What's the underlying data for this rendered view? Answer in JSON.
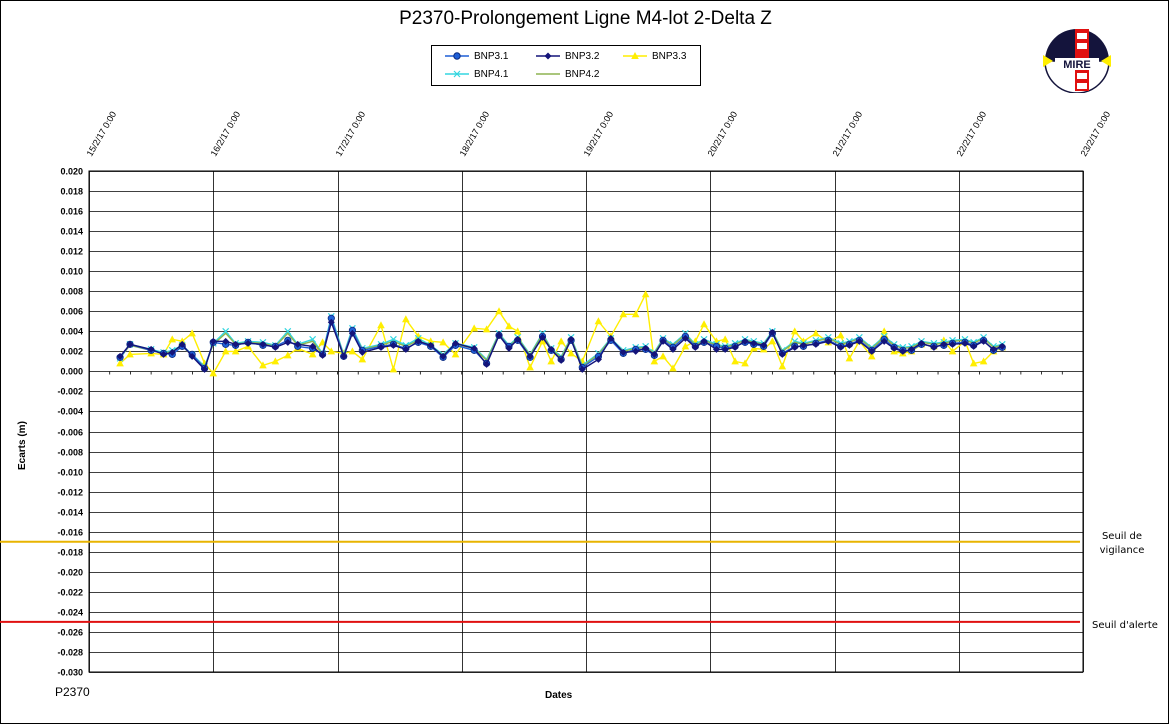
{
  "chart_data": {
    "type": "line",
    "title": "P2370-Prolongement  Ligne  M4-lot  2-Delta  Z",
    "xlabel": "Dates",
    "ylabel": "Ecarts (m)",
    "footer_label": "P2370",
    "ylim": [
      -0.03,
      0.02
    ],
    "y_tick_step": 0.002,
    "y_ticks": [
      "0.020",
      "0.018",
      "0.016",
      "0.014",
      "0.012",
      "0.010",
      "0.008",
      "0.006",
      "0.004",
      "0.002",
      "0.000",
      "-0.002",
      "-0.004",
      "-0.006",
      "-0.008",
      "-0.010",
      "-0.012",
      "-0.014",
      "-0.016",
      "-0.018",
      "-0.020",
      "-0.022",
      "-0.024",
      "-0.026",
      "-0.028",
      "-0.030"
    ],
    "x_range_days": [
      15,
      23
    ],
    "x_ticks": [
      {
        "day": 15,
        "label": "15/2/17 0:00"
      },
      {
        "day": 16,
        "label": "16/2/17 0:00"
      },
      {
        "day": 17,
        "label": "17/2/17 0:00"
      },
      {
        "day": 18,
        "label": "18/2/17 0:00"
      },
      {
        "day": 19,
        "label": "19/2/17 0:00"
      },
      {
        "day": 20,
        "label": "20/2/17 0:00"
      },
      {
        "day": 21,
        "label": "21/2/17 0:00"
      },
      {
        "day": 22,
        "label": "22/2/17 0:00"
      },
      {
        "day": 23,
        "label": "23/2/17 0:00"
      }
    ],
    "grid": "on",
    "legend_position": "top-center",
    "thresholds": [
      {
        "name": "Seuil de vigilance",
        "label_lines": [
          "Seuil de",
          "vigilance"
        ],
        "value": -0.017,
        "color": "#e8b400"
      },
      {
        "name": "Seuil d'alerte",
        "label_lines": [
          "Seuil d'alerte"
        ],
        "value": -0.025,
        "color": "#e01010"
      }
    ],
    "x_dates_day": [
      15.25,
      15.33,
      15.5,
      15.6,
      15.67,
      15.75,
      15.83,
      15.93,
      16.0,
      16.1,
      16.18,
      16.28,
      16.4,
      16.5,
      16.6,
      16.68,
      16.8,
      16.88,
      16.95,
      17.05,
      17.12,
      17.2,
      17.35,
      17.45,
      17.55,
      17.65,
      17.75,
      17.85,
      17.95,
      18.1,
      18.2,
      18.3,
      18.38,
      18.45,
      18.55,
      18.65,
      18.72,
      18.8,
      18.88,
      18.97,
      19.1,
      19.2,
      19.3,
      19.4,
      19.48,
      19.55,
      19.62,
      19.7,
      19.8,
      19.88,
      19.95,
      20.05,
      20.12,
      20.2,
      20.28,
      20.35,
      20.43,
      20.5,
      20.58,
      20.68,
      20.75,
      20.85,
      20.95,
      21.05,
      21.12,
      21.2,
      21.3,
      21.4,
      21.48,
      21.55,
      21.62,
      21.7,
      21.8,
      21.88,
      21.95,
      22.05,
      22.12,
      22.2,
      22.28,
      22.35
    ],
    "series": [
      {
        "name": "BNP3.1",
        "color": "#1f5fd6",
        "marker": "circle",
        "values": [
          0.0014,
          0.0027,
          0.0021,
          0.0018,
          0.0017,
          0.0025,
          0.0017,
          0.0003,
          0.0029,
          0.0027,
          0.0026,
          0.0029,
          0.0026,
          0.0025,
          0.0031,
          0.0025,
          0.0023,
          0.0017,
          0.0053,
          0.0015,
          0.0041,
          0.0021,
          0.0025,
          0.0027,
          0.0023,
          0.0029,
          0.0025,
          0.0014,
          0.0026,
          0.0021,
          0.0008,
          0.0036,
          0.0025,
          0.0031,
          0.0014,
          0.0035,
          0.0021,
          0.0012,
          0.0031,
          0.0004,
          0.0015,
          0.0031,
          0.0018,
          0.0022,
          0.0022,
          0.0016,
          0.0031,
          0.0024,
          0.0035,
          0.0025,
          0.0029,
          0.0025,
          0.0023,
          0.0025,
          0.0029,
          0.0027,
          0.0025,
          0.0038,
          0.0018,
          0.0025,
          0.0025,
          0.0028,
          0.0031,
          0.0025,
          0.0027,
          0.0031,
          0.0021,
          0.0032,
          0.0024,
          0.0021,
          0.0021,
          0.0027,
          0.0025,
          0.0026,
          0.0028,
          0.0029,
          0.0026,
          0.0031,
          0.0021,
          0.0024
        ]
      },
      {
        "name": "BNP3.2",
        "color": "#14147a",
        "marker": "diamond",
        "values": [
          0.0015,
          0.0027,
          0.0022,
          0.0017,
          0.0019,
          0.0027,
          0.0015,
          0.0002,
          0.003,
          0.003,
          0.0027,
          0.0028,
          0.0027,
          0.0024,
          0.0029,
          0.0027,
          0.0025,
          0.0016,
          0.0049,
          0.0015,
          0.0038,
          0.0019,
          0.0024,
          0.0026,
          0.0022,
          0.003,
          0.0026,
          0.0015,
          0.0028,
          0.0023,
          0.0007,
          0.0036,
          0.0023,
          0.0032,
          0.0015,
          0.0034,
          0.0022,
          0.0011,
          0.0032,
          0.0002,
          0.0012,
          0.0033,
          0.0019,
          0.002,
          0.0023,
          0.0017,
          0.003,
          0.0022,
          0.0033,
          0.0024,
          0.003,
          0.0022,
          0.0022,
          0.0024,
          0.003,
          0.0028,
          0.0026,
          0.0039,
          0.0017,
          0.0024,
          0.0026,
          0.0027,
          0.003,
          0.0024,
          0.0026,
          0.003,
          0.002,
          0.003,
          0.0023,
          0.002,
          0.0022,
          0.0028,
          0.0024,
          0.0027,
          0.0027,
          0.0028,
          0.0025,
          0.003,
          0.0022,
          0.0025
        ]
      },
      {
        "name": "BNP3.3",
        "color": "#ffee00",
        "marker": "triangle",
        "values": [
          0.0008,
          0.0017,
          0.0018,
          0.0017,
          0.0032,
          0.003,
          0.0038,
          0.0008,
          -0.0002,
          0.002,
          0.002,
          0.0025,
          0.0006,
          0.001,
          0.0016,
          0.0023,
          0.0017,
          0.0029,
          0.002,
          0.0018,
          0.002,
          0.0012,
          0.0046,
          0.0002,
          0.0052,
          0.0035,
          0.003,
          0.0029,
          0.0017,
          0.0043,
          0.0042,
          0.006,
          0.0045,
          0.004,
          0.0004,
          0.003,
          0.001,
          0.003,
          0.0018,
          0.001,
          0.005,
          0.0035,
          0.0057,
          0.0057,
          0.0077,
          0.001,
          0.0015,
          0.0003,
          0.0025,
          0.003,
          0.0047,
          0.003,
          0.0032,
          0.001,
          0.0008,
          0.0023,
          0.0022,
          0.003,
          0.0005,
          0.004,
          0.003,
          0.0038,
          0.0029,
          0.0036,
          0.0013,
          0.003,
          0.0015,
          0.004,
          0.002,
          0.0018,
          0.002,
          0.0027,
          0.0025,
          0.0031,
          0.002,
          0.003,
          0.0008,
          0.001,
          0.002,
          0.0024
        ]
      },
      {
        "name": "BNP4.1",
        "color": "#33d6e0",
        "marker": "x",
        "values": [
          0.0013,
          0.0027,
          0.0022,
          0.0019,
          0.0021,
          0.0026,
          0.0017,
          0.0005,
          0.0028,
          0.004,
          0.0028,
          0.003,
          0.0029,
          0.0026,
          0.004,
          0.0027,
          0.0032,
          0.0018,
          0.0055,
          0.0017,
          0.0043,
          0.0023,
          0.0027,
          0.0032,
          0.0026,
          0.0033,
          0.0026,
          0.0017,
          0.0028,
          0.0024,
          0.0012,
          0.0038,
          0.0026,
          0.0034,
          0.0017,
          0.0038,
          0.0023,
          0.0015,
          0.0034,
          0.0006,
          0.0018,
          0.0033,
          0.0021,
          0.0024,
          0.0025,
          0.0019,
          0.0033,
          0.0027,
          0.0038,
          0.0027,
          0.0032,
          0.0027,
          0.0025,
          0.0028,
          0.0032,
          0.003,
          0.0028,
          0.004,
          0.0021,
          0.003,
          0.0028,
          0.0031,
          0.0034,
          0.0028,
          0.003,
          0.0034,
          0.0024,
          0.0035,
          0.0027,
          0.0024,
          0.0025,
          0.003,
          0.0028,
          0.0029,
          0.0031,
          0.0032,
          0.0029,
          0.0034,
          0.0025,
          0.0027
        ]
      },
      {
        "name": "BNP4.2",
        "color": "#8db450",
        "marker": "none",
        "values": [
          0.0014,
          0.0026,
          0.0021,
          0.0018,
          0.002,
          0.0025,
          0.0016,
          0.0004,
          0.0027,
          0.0038,
          0.0027,
          0.0029,
          0.0028,
          0.0025,
          0.0038,
          0.0026,
          0.003,
          0.0017,
          0.0053,
          0.0016,
          0.0041,
          0.0022,
          0.0026,
          0.003,
          0.0025,
          0.0031,
          0.0025,
          0.0016,
          0.0027,
          0.0023,
          0.0011,
          0.0037,
          0.0025,
          0.0033,
          0.0016,
          0.0037,
          0.0022,
          0.0014,
          0.0033,
          0.0005,
          0.0017,
          0.0032,
          0.002,
          0.0023,
          0.0024,
          0.0018,
          0.0032,
          0.0026,
          0.0037,
          0.0026,
          0.0031,
          0.0026,
          0.0024,
          0.0027,
          0.0031,
          0.0029,
          0.0027,
          0.0039,
          0.002,
          0.0029,
          0.0027,
          0.003,
          0.0033,
          0.0027,
          0.0029,
          0.0033,
          0.0023,
          0.0034,
          0.0026,
          0.0023,
          0.0024,
          0.0029,
          0.0027,
          0.0028,
          0.003,
          0.0031,
          0.0028,
          0.0033,
          0.0024,
          0.0026
        ]
      }
    ]
  },
  "logo": {
    "text": "MIRE",
    "colors": {
      "bg": "#14143c",
      "accent": "#ffee00",
      "red": "#e01010"
    }
  }
}
